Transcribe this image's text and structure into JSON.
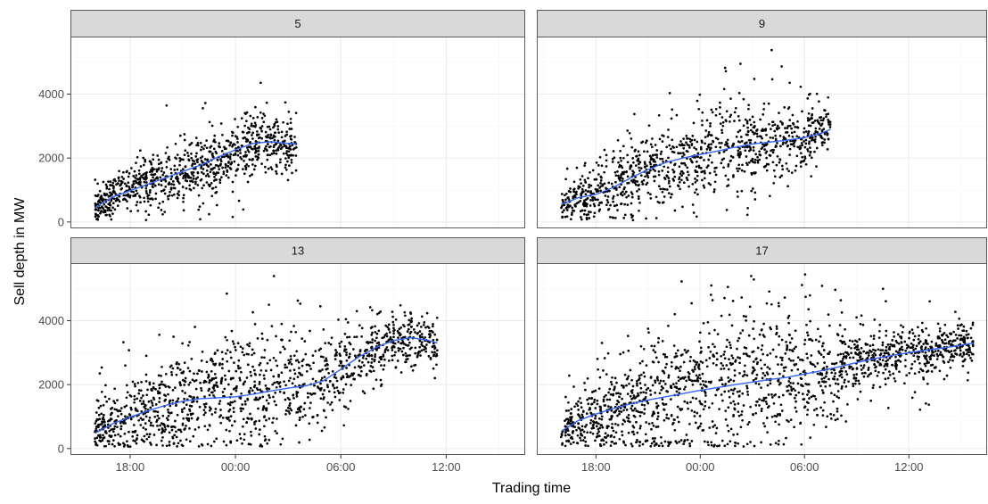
{
  "chart_data": {
    "type": "scatter",
    "layout": "facet_wrap",
    "xlabel": "Trading time",
    "ylabel": "Sell depth in MW",
    "x_ticks": [
      "18:00",
      "00:00",
      "06:00",
      "12:00"
    ],
    "x_tick_hours": [
      18,
      24,
      30,
      36
    ],
    "y_ticks": [
      0,
      2000,
      4000
    ],
    "xlim_hours": [
      14.6,
      40.5
    ],
    "ylim": [
      -200,
      5800
    ],
    "grid": true,
    "colors": {
      "points": "#000000",
      "smooth_line": "#3366ff",
      "strip_fill": "#d9d9d9",
      "strip_border": "#333333",
      "grid_major": "#ebebeb",
      "grid_minor": "#f5f5f5",
      "panel_border": "#333333"
    },
    "facets": [
      {
        "label": "5",
        "x_start_hours": 16.0,
        "x_end_hours": 27.5,
        "n_points": 900,
        "scatter_ref": [
          [
            16,
            500
          ],
          [
            18,
            1100
          ],
          [
            20,
            1400
          ],
          [
            22,
            1700
          ],
          [
            24,
            2200
          ],
          [
            25,
            2500
          ],
          [
            27.5,
            2450
          ]
        ],
        "spread_ref": [
          [
            16,
            300
          ],
          [
            20,
            450
          ],
          [
            24,
            500
          ],
          [
            27.5,
            400
          ]
        ],
        "smooth": [
          [
            16.0,
            450
          ],
          [
            17,
            780
          ],
          [
            18,
            980
          ],
          [
            19,
            1180
          ],
          [
            20,
            1380
          ],
          [
            21,
            1580
          ],
          [
            22,
            1780
          ],
          [
            23,
            2030
          ],
          [
            24,
            2260
          ],
          [
            25,
            2460
          ],
          [
            26,
            2510
          ],
          [
            27,
            2460
          ],
          [
            27.5,
            2440
          ]
        ]
      },
      {
        "label": "9",
        "x_start_hours": 16.0,
        "x_end_hours": 31.5,
        "n_points": 1050,
        "scatter_ref": [
          [
            16,
            500
          ],
          [
            17,
            800
          ],
          [
            18,
            900
          ],
          [
            20,
            1300
          ],
          [
            22,
            1800
          ],
          [
            24,
            2100
          ],
          [
            26,
            2400
          ],
          [
            28,
            2500
          ],
          [
            30,
            2650
          ],
          [
            31.5,
            2900
          ]
        ],
        "spread_ref": [
          [
            16,
            300
          ],
          [
            20,
            600
          ],
          [
            24,
            700
          ],
          [
            28,
            650
          ],
          [
            31.5,
            450
          ]
        ],
        "smooth": [
          [
            16.0,
            550
          ],
          [
            17,
            760
          ],
          [
            18,
            860
          ],
          [
            19,
            1080
          ],
          [
            20,
            1380
          ],
          [
            21,
            1640
          ],
          [
            22,
            1860
          ],
          [
            23,
            2000
          ],
          [
            24,
            2110
          ],
          [
            25,
            2220
          ],
          [
            26,
            2340
          ],
          [
            27,
            2440
          ],
          [
            28,
            2500
          ],
          [
            29,
            2560
          ],
          [
            30,
            2640
          ],
          [
            31,
            2780
          ],
          [
            31.5,
            2900
          ]
        ]
      },
      {
        "label": "13",
        "x_start_hours": 16.0,
        "x_end_hours": 35.5,
        "n_points": 1350,
        "scatter_ref": [
          [
            16,
            500
          ],
          [
            18,
            950
          ],
          [
            20,
            1300
          ],
          [
            22,
            1550
          ],
          [
            24,
            1600
          ],
          [
            26,
            1800
          ],
          [
            28,
            2050
          ],
          [
            29.5,
            2300
          ],
          [
            31,
            2800
          ],
          [
            33,
            3300
          ],
          [
            34,
            3500
          ],
          [
            35.5,
            3350
          ]
        ],
        "spread_ref": [
          [
            16,
            400
          ],
          [
            20,
            750
          ],
          [
            24,
            850
          ],
          [
            28,
            750
          ],
          [
            31,
            550
          ],
          [
            35.5,
            350
          ]
        ],
        "smooth": [
          [
            16.0,
            480
          ],
          [
            17,
            780
          ],
          [
            18,
            980
          ],
          [
            19,
            1180
          ],
          [
            20,
            1350
          ],
          [
            21,
            1480
          ],
          [
            22,
            1560
          ],
          [
            23,
            1590
          ],
          [
            24,
            1620
          ],
          [
            25,
            1700
          ],
          [
            26,
            1800
          ],
          [
            27,
            1890
          ],
          [
            28,
            1960
          ],
          [
            29,
            2120
          ],
          [
            30,
            2480
          ],
          [
            31,
            2860
          ],
          [
            32,
            3160
          ],
          [
            33,
            3380
          ],
          [
            34,
            3470
          ],
          [
            35,
            3380
          ],
          [
            35.5,
            3300
          ]
        ]
      },
      {
        "label": "17",
        "x_start_hours": 16.0,
        "x_end_hours": 39.7,
        "n_points": 1700,
        "scatter_ref": [
          [
            16,
            500
          ],
          [
            17,
            900
          ],
          [
            18,
            1100
          ],
          [
            20,
            1350
          ],
          [
            22,
            1650
          ],
          [
            24,
            1850
          ],
          [
            26,
            2050
          ],
          [
            28,
            2200
          ],
          [
            30,
            2350
          ],
          [
            32,
            2600
          ],
          [
            34,
            2850
          ],
          [
            36,
            3000
          ],
          [
            38,
            3150
          ],
          [
            39.7,
            3300
          ]
        ],
        "spread_ref": [
          [
            16,
            300
          ],
          [
            19,
            650
          ],
          [
            23,
            1100
          ],
          [
            27,
            1200
          ],
          [
            30,
            900
          ],
          [
            33,
            450
          ],
          [
            39.7,
            300
          ]
        ],
        "smooth": [
          [
            16.0,
            540
          ],
          [
            17,
            880
          ],
          [
            18,
            1080
          ],
          [
            19,
            1250
          ],
          [
            20,
            1400
          ],
          [
            21,
            1520
          ],
          [
            22,
            1620
          ],
          [
            23,
            1720
          ],
          [
            24,
            1820
          ],
          [
            25,
            1910
          ],
          [
            26,
            2000
          ],
          [
            27,
            2080
          ],
          [
            28,
            2160
          ],
          [
            29,
            2230
          ],
          [
            30,
            2330
          ],
          [
            31,
            2440
          ],
          [
            32,
            2560
          ],
          [
            33,
            2690
          ],
          [
            34,
            2810
          ],
          [
            35,
            2910
          ],
          [
            36,
            3000
          ],
          [
            37,
            3080
          ],
          [
            38,
            3150
          ],
          [
            39,
            3230
          ],
          [
            39.7,
            3300
          ]
        ]
      }
    ]
  }
}
